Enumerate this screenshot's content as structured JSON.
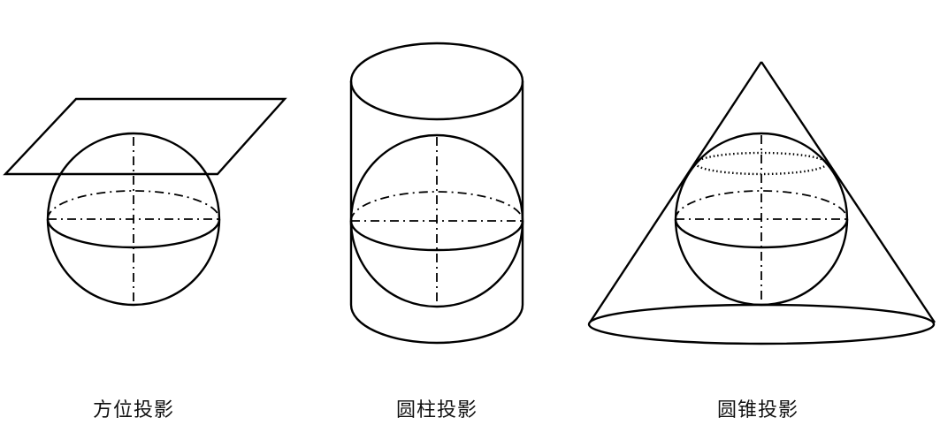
{
  "captions": {
    "azimuthal": "方位投影",
    "cylindrical": "圆柱投影",
    "conic": "圆锥投影"
  },
  "colors": {
    "line": "#000000",
    "background": "#ffffff"
  }
}
